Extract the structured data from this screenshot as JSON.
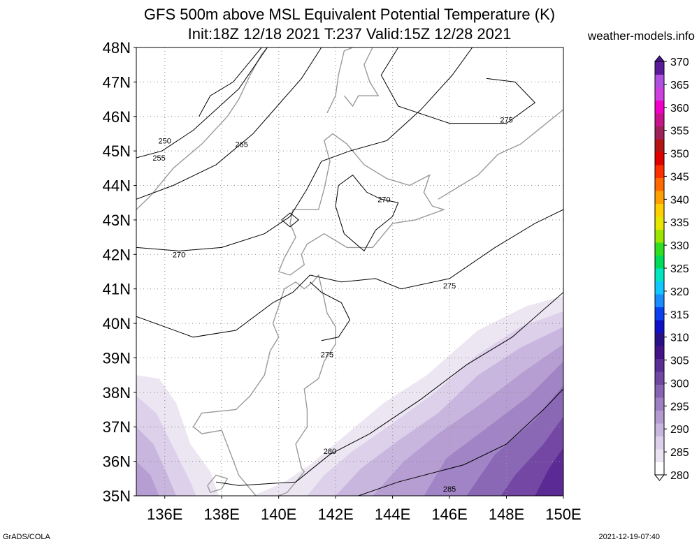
{
  "header": {
    "title_line1": "GFS 500m above MSL Equivalent Potential Temperature (K)",
    "title_line2": "Init:18Z 12/18 2021 T:237 Valid:15Z 12/28 2021",
    "site": "weather-models.info"
  },
  "footer": {
    "credit": "GrADS/COLA",
    "timestamp": "2021-12-19-07:40"
  },
  "chart_data": {
    "type": "heatmap",
    "title": "GFS 500m above MSL Equivalent Potential Temperature (K)",
    "x_ticks": [
      "136E",
      "138E",
      "140E",
      "142E",
      "144E",
      "146E",
      "148E",
      "150E"
    ],
    "x_tick_values": [
      136,
      138,
      140,
      142,
      144,
      146,
      148,
      150
    ],
    "xlim": [
      135,
      150
    ],
    "y_ticks": [
      "35N",
      "36N",
      "37N",
      "38N",
      "39N",
      "40N",
      "41N",
      "42N",
      "43N",
      "44N",
      "45N",
      "46N",
      "47N",
      "48N"
    ],
    "y_tick_values": [
      35,
      36,
      37,
      38,
      39,
      40,
      41,
      42,
      43,
      44,
      45,
      46,
      47,
      48
    ],
    "ylim": [
      35,
      48
    ],
    "grid": true,
    "colorbar": {
      "levels": [
        280,
        285,
        290,
        295,
        300,
        305,
        310,
        315,
        320,
        325,
        330,
        335,
        340,
        345,
        350,
        355,
        360,
        365,
        370
      ],
      "labels": [
        "280",
        "285",
        "290",
        "295",
        "300",
        "305",
        "310",
        "315",
        "320",
        "325",
        "330",
        "335",
        "340",
        "345",
        "350",
        "355",
        "360",
        "365",
        "370"
      ],
      "colors": [
        "#ffffff",
        "#ebe3f2",
        "#ddd0ea",
        "#c9b6de",
        "#b39ad0",
        "#9d7fc2",
        "#8663b3",
        "#7048a4",
        "#5a2e95",
        "#441387",
        "#2a0f8a",
        "#1010c8",
        "#0a40f0",
        "#1a8cff",
        "#10c8ff",
        "#00e6c0",
        "#00dc5a",
        "#30e020",
        "#9ae600",
        "#e6e600",
        "#ffd000",
        "#ffa000",
        "#ff6a00",
        "#ff3000",
        "#e00000",
        "#b41414",
        "#a0205a",
        "#c8148c",
        "#f000c8",
        "#d040e0",
        "#b050e0",
        "#5a1a9a"
      ],
      "arrow_colors": [
        "#ffffff",
        "#4b1490"
      ]
    },
    "contours": [
      {
        "value": 250,
        "label": "250"
      },
      {
        "value": 255,
        "label": "255"
      },
      {
        "value": 265,
        "label": "265"
      },
      {
        "value": 270,
        "label": "270"
      },
      {
        "value": 270,
        "label": "270"
      },
      {
        "value": 270,
        "label": "270"
      },
      {
        "value": 275,
        "label": "275"
      },
      {
        "value": 275,
        "label": "275"
      },
      {
        "value": 275,
        "label": "275"
      },
      {
        "value": 280,
        "label": "280"
      },
      {
        "value": 285,
        "label": "285"
      }
    ],
    "shading_bands": [
      {
        "value": 281,
        "lines": [
          [
            [
              150,
              40.8
            ],
            [
              148.7,
              40.5
            ],
            [
              147,
              39.8
            ],
            [
              145.2,
              38.5
            ],
            [
              143.7,
              37.7
            ],
            [
              142.4,
              36.8
            ],
            [
              141.1,
              35.9
            ],
            [
              140.2,
              35.4
            ],
            [
              139.1,
              35.0
            ],
            [
              150,
              35.0
            ]
          ]
        ]
      },
      {
        "value": 282,
        "lines": [
          [
            [
              150,
              40.35
            ],
            [
              148.5,
              39.9
            ],
            [
              147,
              39.1
            ],
            [
              145.5,
              38.0
            ],
            [
              144.0,
              37.1
            ],
            [
              142.6,
              36.3
            ],
            [
              141.6,
              35.6
            ],
            [
              141.0,
              35.0
            ],
            [
              150,
              35.0
            ]
          ]
        ]
      },
      {
        "value": 283,
        "lines": [
          [
            [
              150,
              39.9
            ],
            [
              148.5,
              39.3
            ],
            [
              147,
              38.5
            ],
            [
              145.6,
              37.4
            ],
            [
              144.2,
              36.6
            ],
            [
              142.9,
              35.8
            ],
            [
              142.0,
              35.0
            ],
            [
              150,
              35.0
            ]
          ]
        ]
      },
      {
        "value": 284,
        "lines": [
          [
            [
              150,
              39.4
            ],
            [
              148.6,
              38.6
            ],
            [
              147,
              37.6
            ],
            [
              145.6,
              36.8
            ],
            [
              144.4,
              36.0
            ],
            [
              143.3,
              35.0
            ],
            [
              150,
              35.0
            ]
          ]
        ]
      },
      {
        "value": 285,
        "lines": [
          [
            [
              150,
              38.9
            ],
            [
              148.8,
              37.9
            ],
            [
              147.2,
              36.9
            ],
            [
              145.9,
              36.1
            ],
            [
              145.1,
              35.0
            ],
            [
              150,
              35.0
            ]
          ]
        ]
      },
      {
        "value": 286,
        "lines": [
          [
            [
              150,
              38.2
            ],
            [
              149.0,
              37.2
            ],
            [
              147.6,
              36.2
            ],
            [
              146.6,
              35.0
            ],
            [
              150,
              35.0
            ]
          ]
        ]
      },
      {
        "value": 287,
        "lines": [
          [
            [
              150,
              37.3
            ],
            [
              149.3,
              36.5
            ],
            [
              148.3,
              35.6
            ],
            [
              147.8,
              35.0
            ],
            [
              150,
              35.0
            ]
          ]
        ]
      },
      {
        "value": 288,
        "lines": [
          [
            [
              150,
              36.4
            ],
            [
              149.5,
              35.8
            ],
            [
              149.0,
              35.0
            ],
            [
              150,
              35.0
            ]
          ]
        ]
      },
      {
        "value": 281,
        "lines": [
          [
            [
              135,
              38.5
            ],
            [
              135.8,
              38.4
            ],
            [
              136.4,
              37.7
            ],
            [
              136.9,
              36.5
            ],
            [
              137.6,
              35.7
            ],
            [
              137.9,
              35.0
            ],
            [
              135,
              35.0
            ]
          ]
        ]
      },
      {
        "value": 282,
        "lines": [
          [
            [
              135,
              37.9
            ],
            [
              135.7,
              37.4
            ],
            [
              136.3,
              36.4
            ],
            [
              136.9,
              35.4
            ],
            [
              137.1,
              35.0
            ],
            [
              135,
              35.0
            ]
          ]
        ]
      },
      {
        "value": 283,
        "lines": [
          [
            [
              135,
              37.0
            ],
            [
              135.6,
              36.5
            ],
            [
              136.1,
              35.6
            ],
            [
              136.4,
              35.0
            ],
            [
              135,
              35.0
            ]
          ]
        ]
      },
      {
        "value": 284,
        "lines": [
          [
            [
              135,
              36.0
            ],
            [
              135.5,
              35.6
            ],
            [
              135.8,
              35.0
            ],
            [
              135,
              35.0
            ]
          ]
        ]
      }
    ]
  }
}
